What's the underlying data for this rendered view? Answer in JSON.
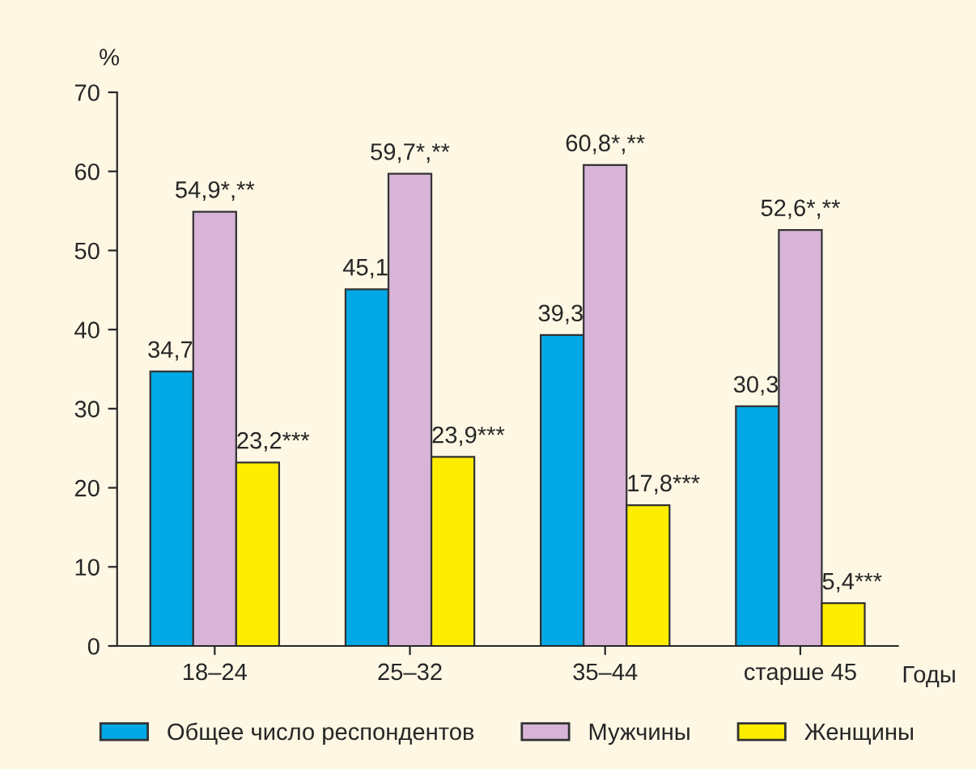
{
  "chart_data": {
    "type": "bar",
    "ylabel": "%",
    "xlabel": "Годы",
    "categories": [
      "18–24",
      "25–32",
      "35–44",
      "старше 45"
    ],
    "series": [
      {
        "name": "Общее число респондентов",
        "color": "#00a8e6",
        "values": [
          34.7,
          45.1,
          39.3,
          30.3
        ],
        "value_labels": [
          "34,7",
          "45,1",
          "39,3",
          "30,3"
        ]
      },
      {
        "name": "Мужчины",
        "color": "#d8b4d8",
        "values": [
          54.9,
          59.7,
          60.8,
          52.6
        ],
        "value_labels": [
          "54,9*,**",
          "59,7*,**",
          "60,8*,**",
          "52,6*,**"
        ]
      },
      {
        "name": "Женщины",
        "color": "#ffed00",
        "values": [
          23.2,
          23.9,
          17.8,
          5.4
        ],
        "value_labels": [
          "23,2***",
          "23,9***",
          "17,8***",
          "5,4***"
        ]
      }
    ],
    "ylim": [
      0,
      70
    ],
    "yticks": [
      0,
      10,
      20,
      30,
      40,
      50,
      60,
      70
    ],
    "grid": false,
    "legend": "bottom"
  }
}
